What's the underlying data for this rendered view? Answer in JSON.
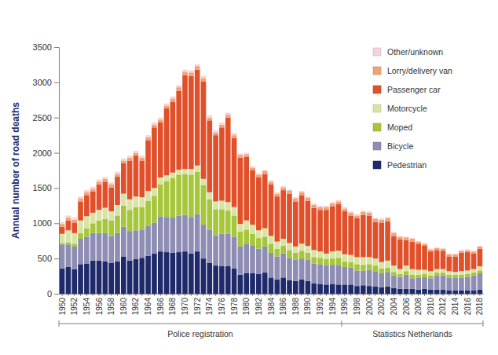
{
  "chart_data": {
    "type": "bar",
    "stacked": true,
    "grid": false,
    "legend": "upper right",
    "y_label": "Annual number of road deaths",
    "ylim": [
      0,
      3500
    ],
    "yticks": [
      0,
      500,
      1000,
      1500,
      2000,
      2500,
      3000,
      3500
    ],
    "categories": [
      "1950",
      null,
      "1952",
      null,
      "1954",
      null,
      "1956",
      null,
      "1958",
      null,
      "1960",
      null,
      "1962",
      null,
      "1964",
      null,
      "1966",
      null,
      "1968",
      null,
      "1970",
      null,
      "1972",
      null,
      "1974",
      null,
      "1976",
      null,
      "1978",
      null,
      "1980",
      null,
      "1982",
      null,
      "1984",
      null,
      "1986",
      null,
      "1988",
      null,
      "1990",
      null,
      "1992",
      null,
      "1994",
      null,
      "1996",
      null,
      "1998",
      null,
      "2000",
      null,
      "2002",
      null,
      "2004",
      null,
      "2006",
      null,
      "2008",
      null,
      "2010",
      null,
      "2012",
      null,
      "2014",
      null,
      "2016",
      null,
      "2018"
    ],
    "groups": [
      {
        "label": "Police registration",
        "count": 46
      },
      {
        "label": "Statistics Netherlands",
        "count": 23
      }
    ],
    "series": [
      {
        "name": "Pedestrian",
        "color": "#1f2a6b",
        "values": [
          360,
          380,
          350,
          420,
          430,
          470,
          470,
          460,
          440,
          460,
          530,
          470,
          490,
          510,
          540,
          570,
          600,
          590,
          580,
          590,
          600,
          570,
          600,
          500,
          440,
          400,
          390,
          390,
          360,
          270,
          290,
          290,
          280,
          300,
          230,
          200,
          230,
          190,
          180,
          200,
          180,
          150,
          140,
          130,
          140,
          130,
          130,
          130,
          110,
          120,
          110,
          100,
          90,
          100,
          80,
          70,
          70,
          70,
          60,
          70,
          60,
          60,
          60,
          50,
          50,
          50,
          50,
          50,
          60
        ]
      },
      {
        "name": "Bicycle",
        "color": "#8e8db3",
        "values": [
          340,
          320,
          320,
          360,
          380,
          390,
          390,
          400,
          380,
          400,
          420,
          420,
          410,
          400,
          420,
          440,
          500,
          500,
          500,
          520,
          520,
          520,
          530,
          480,
          470,
          430,
          460,
          460,
          450,
          400,
          420,
          390,
          360,
          370,
          350,
          330,
          340,
          320,
          300,
          300,
          300,
          280,
          280,
          270,
          270,
          280,
          250,
          240,
          220,
          210,
          230,
          220,
          200,
          210,
          180,
          170,
          200,
          150,
          170,
          170,
          160,
          200,
          200,
          180,
          180,
          180,
          190,
          210,
          230
        ]
      },
      {
        "name": "Moped",
        "color": "#a6c63c",
        "values": [
          20,
          30,
          40,
          80,
          120,
          140,
          180,
          200,
          220,
          250,
          300,
          300,
          330,
          320,
          360,
          380,
          450,
          510,
          560,
          580,
          580,
          600,
          600,
          560,
          430,
          370,
          350,
          330,
          300,
          210,
          200,
          170,
          150,
          140,
          130,
          110,
          110,
          110,
          100,
          110,
          100,
          90,
          90,
          90,
          90,
          100,
          80,
          80,
          90,
          80,
          80,
          80,
          70,
          60,
          50,
          40,
          50,
          50,
          40,
          40,
          40,
          40,
          40,
          40,
          40,
          40,
          40,
          40,
          40
        ]
      },
      {
        "name": "Motorcycle",
        "color": "#d9e3a6",
        "values": [
          130,
          170,
          150,
          180,
          170,
          150,
          150,
          160,
          130,
          150,
          170,
          150,
          150,
          140,
          140,
          110,
          100,
          80,
          80,
          70,
          70,
          80,
          90,
          90,
          100,
          110,
          120,
          120,
          120,
          110,
          130,
          130,
          110,
          120,
          110,
          100,
          100,
          100,
          90,
          100,
          100,
          100,
          90,
          80,
          100,
          100,
          100,
          100,
          100,
          110,
          100,
          100,
          90,
          100,
          90,
          70,
          80,
          80,
          70,
          60,
          60,
          50,
          50,
          50,
          40,
          50,
          50,
          50,
          60
        ]
      },
      {
        "name": "Passenger car",
        "color": "#e0502b",
        "values": [
          100,
          140,
          150,
          270,
          300,
          300,
          360,
          370,
          340,
          400,
          430,
          550,
          580,
          520,
          720,
          860,
          780,
          950,
          1000,
          1120,
          1330,
          1320,
          1360,
          1380,
          1020,
          940,
          1040,
          1200,
          980,
          940,
          900,
          770,
          750,
          770,
          730,
          640,
          690,
          700,
          640,
          690,
          640,
          600,
          590,
          620,
          640,
          660,
          610,
          560,
          550,
          600,
          590,
          520,
          560,
          560,
          420,
          420,
          360,
          390,
          370,
          340,
          280,
          270,
          260,
          210,
          220,
          260,
          260,
          220,
          250
        ]
      },
      {
        "name": "Lorry/delivery van",
        "color": "#f0a376",
        "values": [
          40,
          40,
          40,
          40,
          40,
          40,
          40,
          40,
          40,
          40,
          40,
          40,
          40,
          40,
          40,
          40,
          40,
          40,
          50,
          50,
          50,
          50,
          50,
          50,
          40,
          40,
          40,
          40,
          40,
          40,
          40,
          40,
          40,
          40,
          40,
          40,
          40,
          40,
          40,
          40,
          40,
          40,
          40,
          40,
          40,
          40,
          40,
          40,
          40,
          40,
          40,
          40,
          40,
          40,
          40,
          40,
          40,
          40,
          30,
          30,
          30,
          30,
          30,
          30,
          30,
          30,
          30,
          30,
          30
        ]
      },
      {
        "name": "Other/unknown",
        "color": "#f5d3da",
        "values": [
          30,
          30,
          30,
          30,
          30,
          30,
          30,
          30,
          30,
          30,
          30,
          30,
          30,
          30,
          30,
          30,
          30,
          30,
          30,
          30,
          30,
          30,
          30,
          30,
          30,
          30,
          30,
          30,
          30,
          20,
          20,
          20,
          20,
          20,
          20,
          20,
          20,
          20,
          20,
          20,
          20,
          20,
          20,
          20,
          20,
          20,
          20,
          20,
          20,
          20,
          20,
          20,
          20,
          20,
          20,
          10,
          10,
          10,
          10,
          10,
          10,
          10,
          10,
          10,
          10,
          10,
          10,
          10,
          10
        ]
      }
    ]
  }
}
